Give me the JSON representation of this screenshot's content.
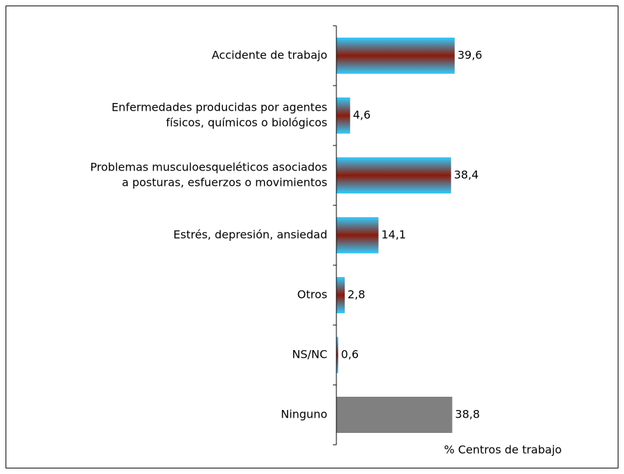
{
  "chart_data": {
    "type": "hbar",
    "categories": [
      [
        "Accidente de trabajo"
      ],
      [
        "Enfermedades producidas por agentes",
        "físicos, químicos o biológicos"
      ],
      [
        "Problemas musculoesqueléticos asociados",
        "a posturas, esfuerzos o movimientos"
      ],
      [
        "Estrés, depresión, ansiedad"
      ],
      [
        "Otros"
      ],
      [
        "NS/NC"
      ],
      [
        "Ninguno"
      ]
    ],
    "values": [
      39.6,
      4.6,
      38.4,
      14.1,
      2.8,
      0.6,
      38.8
    ],
    "value_labels": [
      "39,6",
      "4,6",
      "38,4",
      "14,1",
      "2,8",
      "0,6",
      "38,8"
    ],
    "colors": [
      "#33ccff",
      "#33ccff",
      "#33ccff",
      "#33ccff",
      "#33ccff",
      "#33ccff",
      "#808080"
    ],
    "gradient": [
      true,
      true,
      true,
      true,
      true,
      true,
      false
    ],
    "gradient_center": "#8b1a0a",
    "x_label": "% Centros de trabajo",
    "xlim": [
      0,
      90
    ]
  }
}
